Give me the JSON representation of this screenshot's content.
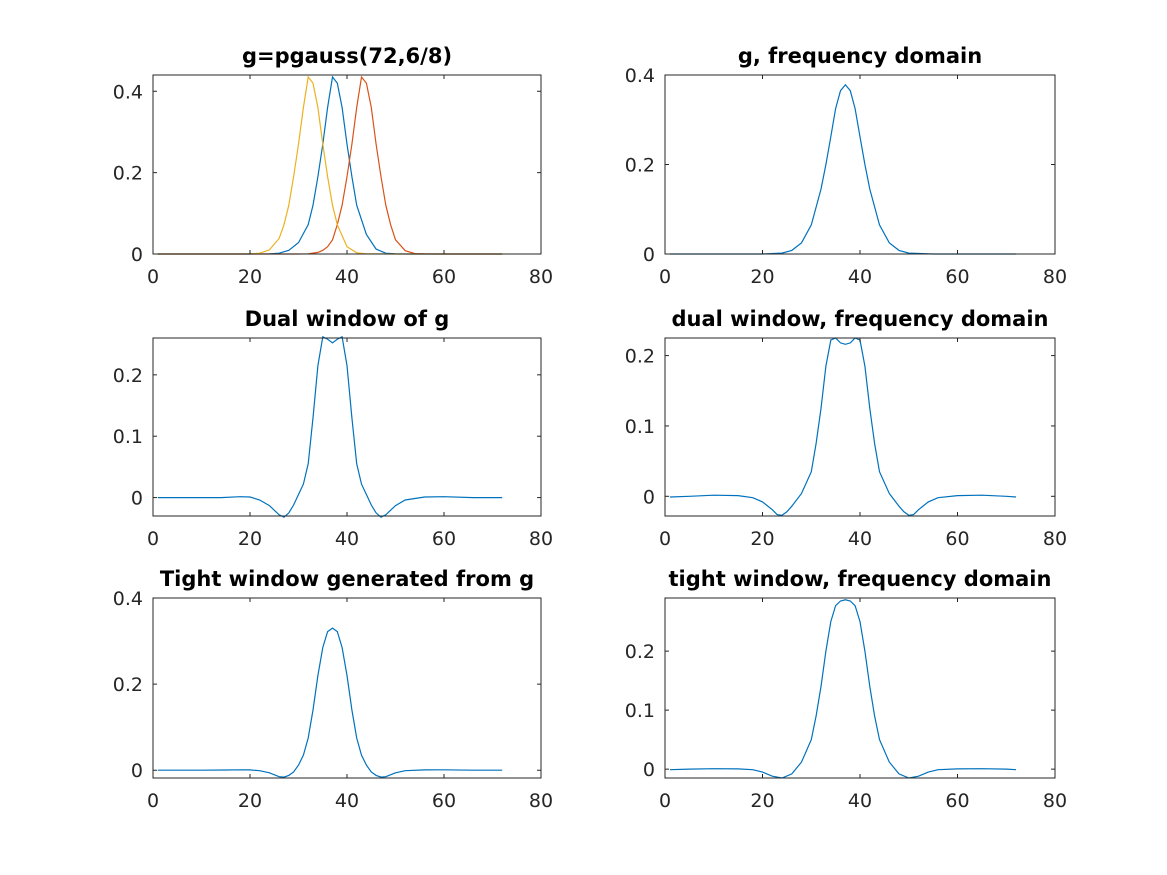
{
  "chart_data": [
    {
      "type": "line",
      "title": "g=pgauss(72,6/8)",
      "xlim": [
        0,
        80
      ],
      "ylim": [
        0,
        0.44
      ],
      "xticks": [
        0,
        20,
        40,
        60,
        80
      ],
      "yticks": [
        0,
        0.2,
        0.4
      ],
      "ytick_labels": [
        "0",
        "0.2",
        "0.4"
      ],
      "grid": false,
      "series": [
        {
          "color": "#0072BD",
          "x": [
            1,
            10,
            20,
            24,
            26,
            28,
            30,
            32,
            33,
            34,
            35,
            36,
            37,
            38,
            39,
            40,
            41,
            42,
            44,
            46,
            48,
            50,
            55,
            60,
            65,
            72
          ],
          "y": [
            0,
            0,
            0,
            0.0005,
            0.002,
            0.009,
            0.028,
            0.072,
            0.12,
            0.19,
            0.27,
            0.36,
            0.435,
            0.42,
            0.36,
            0.27,
            0.19,
            0.12,
            0.048,
            0.012,
            0.002,
            0.0003,
            0,
            0,
            0,
            0
          ]
        },
        {
          "color": "#D95319",
          "x": [
            1,
            10,
            20,
            30,
            32,
            34,
            35,
            36,
            37,
            38,
            39,
            40,
            41,
            42,
            43,
            44,
            45,
            46,
            47,
            48,
            49,
            50,
            52,
            54,
            56,
            60,
            72
          ],
          "y": [
            0,
            0,
            0,
            0,
            0.0005,
            0.004,
            0.009,
            0.018,
            0.035,
            0.072,
            0.12,
            0.19,
            0.27,
            0.36,
            0.435,
            0.42,
            0.36,
            0.27,
            0.19,
            0.12,
            0.072,
            0.035,
            0.008,
            0.001,
            0.0002,
            0,
            0
          ]
        },
        {
          "color": "#EDB120",
          "x": [
            1,
            10,
            18,
            20,
            22,
            24,
            26,
            27,
            28,
            29,
            30,
            31,
            32,
            33,
            34,
            35,
            36,
            37,
            38,
            40,
            42,
            44,
            50,
            60,
            72
          ],
          "y": [
            0,
            0,
            0,
            0.0002,
            0.002,
            0.01,
            0.038,
            0.072,
            0.12,
            0.19,
            0.27,
            0.36,
            0.435,
            0.42,
            0.36,
            0.27,
            0.19,
            0.12,
            0.072,
            0.018,
            0.003,
            0.0005,
            0,
            0,
            0
          ]
        }
      ]
    },
    {
      "type": "line",
      "title": "g, frequency domain",
      "xlim": [
        0,
        80
      ],
      "ylim": [
        0,
        0.4
      ],
      "xticks": [
        0,
        20,
        40,
        60,
        80
      ],
      "yticks": [
        0,
        0.2,
        0.4
      ],
      "ytick_labels": [
        "0",
        "0.2",
        "0.4"
      ],
      "grid": false,
      "series": [
        {
          "color": "#0072BD",
          "x": [
            1,
            10,
            20,
            24,
            26,
            28,
            30,
            32,
            33,
            34,
            35,
            36,
            37,
            38,
            39,
            40,
            41,
            42,
            44,
            46,
            48,
            50,
            55,
            60,
            72
          ],
          "y": [
            0,
            0,
            0,
            0.002,
            0.008,
            0.025,
            0.065,
            0.145,
            0.2,
            0.262,
            0.325,
            0.365,
            0.378,
            0.365,
            0.325,
            0.262,
            0.2,
            0.145,
            0.065,
            0.025,
            0.008,
            0.002,
            0,
            0,
            0
          ]
        }
      ]
    },
    {
      "type": "line",
      "title": "Dual window of g",
      "xlim": [
        0,
        80
      ],
      "ylim": [
        -0.03,
        0.26
      ],
      "xticks": [
        0,
        20,
        40,
        60,
        80
      ],
      "yticks": [
        0,
        0.1,
        0.2
      ],
      "ytick_labels": [
        "0",
        "0.1",
        "0.2"
      ],
      "grid": false,
      "series": [
        {
          "color": "#0072BD",
          "x": [
            1,
            10,
            14,
            18,
            20,
            22,
            24,
            26,
            27,
            28,
            29,
            30,
            31,
            32,
            33,
            34,
            35,
            36,
            37,
            38,
            39,
            40,
            41,
            42,
            43,
            44,
            45,
            46,
            47,
            48,
            50,
            52,
            56,
            60,
            66,
            72
          ],
          "y": [
            0,
            0,
            0,
            0.0015,
            0.001,
            -0.004,
            -0.013,
            -0.028,
            -0.032,
            -0.025,
            -0.012,
            0.005,
            0.022,
            0.055,
            0.13,
            0.215,
            0.262,
            0.258,
            0.252,
            0.258,
            0.262,
            0.215,
            0.13,
            0.055,
            0.022,
            0.005,
            -0.012,
            -0.025,
            -0.032,
            -0.028,
            -0.013,
            -0.004,
            0.001,
            0.0015,
            0,
            0
          ]
        }
      ]
    },
    {
      "type": "line",
      "title": "dual window, frequency domain",
      "xlim": [
        0,
        80
      ],
      "ylim": [
        -0.028,
        0.225
      ],
      "xticks": [
        0,
        20,
        40,
        60,
        80
      ],
      "yticks": [
        0,
        0.1,
        0.2
      ],
      "ytick_labels": [
        "0",
        "0.1",
        "0.2"
      ],
      "grid": false,
      "series": [
        {
          "color": "#0072BD",
          "x": [
            1,
            5,
            10,
            15,
            18,
            20,
            22,
            23,
            24,
            25,
            26,
            28,
            30,
            31,
            32,
            33,
            34,
            35,
            36,
            37,
            38,
            39,
            40,
            41,
            42,
            43,
            44,
            46,
            48,
            49,
            50,
            51,
            52,
            54,
            56,
            60,
            65,
            70,
            72
          ],
          "y": [
            -0.001,
            0,
            0.0015,
            0.001,
            -0.002,
            -0.008,
            -0.019,
            -0.026,
            -0.027,
            -0.022,
            -0.014,
            0.004,
            0.035,
            0.075,
            0.125,
            0.185,
            0.222,
            0.225,
            0.218,
            0.216,
            0.218,
            0.225,
            0.222,
            0.185,
            0.125,
            0.075,
            0.035,
            0.004,
            -0.014,
            -0.022,
            -0.027,
            -0.026,
            -0.019,
            -0.008,
            -0.002,
            0.001,
            0.0015,
            0,
            -0.001
          ]
        }
      ]
    },
    {
      "type": "line",
      "title": "Tight window generated from g",
      "xlim": [
        0,
        80
      ],
      "ylim": [
        -0.018,
        0.4
      ],
      "xticks": [
        0,
        20,
        40,
        60,
        80
      ],
      "yticks": [
        0,
        0.2,
        0.4
      ],
      "ytick_labels": [
        "0",
        "0.2",
        "0.4"
      ],
      "grid": false,
      "series": [
        {
          "color": "#0072BD",
          "x": [
            1,
            10,
            15,
            18,
            20,
            22,
            24,
            26,
            27,
            28,
            29,
            30,
            31,
            32,
            33,
            34,
            35,
            36,
            37,
            38,
            39,
            40,
            41,
            42,
            43,
            44,
            45,
            46,
            47,
            48,
            50,
            52,
            56,
            60,
            66,
            72
          ],
          "y": [
            0,
            0,
            0.0005,
            0.001,
            0.0008,
            -0.001,
            -0.006,
            -0.015,
            -0.016,
            -0.012,
            -0.004,
            0.012,
            0.035,
            0.075,
            0.14,
            0.22,
            0.285,
            0.322,
            0.33,
            0.322,
            0.285,
            0.22,
            0.14,
            0.075,
            0.035,
            0.012,
            -0.004,
            -0.012,
            -0.016,
            -0.015,
            -0.006,
            -0.001,
            0.0008,
            0.001,
            0,
            0
          ]
        }
      ]
    },
    {
      "type": "line",
      "title": "tight window, frequency domain",
      "xlim": [
        0,
        80
      ],
      "ylim": [
        -0.015,
        0.29
      ],
      "xticks": [
        0,
        20,
        40,
        60,
        80
      ],
      "yticks": [
        0,
        0.1,
        0.2
      ],
      "ytick_labels": [
        "0",
        "0.1",
        "0.2"
      ],
      "grid": false,
      "series": [
        {
          "color": "#0072BD",
          "x": [
            1,
            5,
            10,
            15,
            18,
            20,
            22,
            24,
            26,
            28,
            30,
            31,
            32,
            33,
            34,
            35,
            36,
            37,
            38,
            39,
            40,
            41,
            42,
            43,
            44,
            46,
            48,
            50,
            52,
            54,
            56,
            60,
            65,
            70,
            72
          ],
          "y": [
            -0.001,
            0,
            0.0008,
            0.0005,
            -0.001,
            -0.005,
            -0.012,
            -0.015,
            -0.008,
            0.012,
            0.05,
            0.09,
            0.14,
            0.2,
            0.25,
            0.277,
            0.285,
            0.287,
            0.285,
            0.277,
            0.25,
            0.2,
            0.14,
            0.09,
            0.05,
            0.012,
            -0.008,
            -0.015,
            -0.012,
            -0.005,
            -0.001,
            0.0005,
            0.0008,
            0,
            -0.001
          ]
        }
      ]
    }
  ]
}
